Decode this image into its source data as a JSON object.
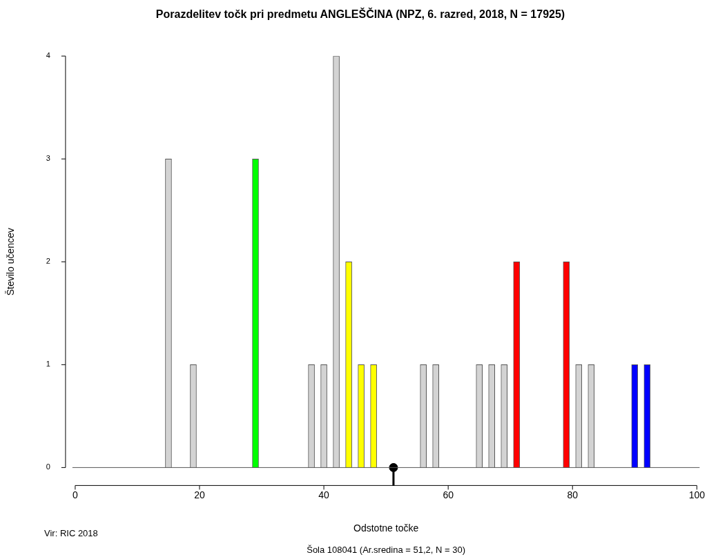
{
  "chart_data": {
    "type": "bar",
    "title": "Porazdelitev točk pri predmetu ANGLEŠČINA (NPZ, 6. razred, 2018, N = 17925)",
    "xlabel": "Odstotne točke",
    "ylabel": "Število učencev",
    "x": [
      15,
      19,
      29,
      38,
      40,
      42,
      44,
      46,
      48,
      56,
      58,
      65,
      67,
      69,
      71,
      79,
      81,
      83,
      90,
      92
    ],
    "series": [
      {
        "values": [
          3,
          1,
          3,
          1,
          1,
          4,
          2,
          1,
          1,
          1,
          1,
          1,
          1,
          1,
          2,
          2,
          1,
          1,
          1,
          1
        ],
        "colors": [
          "#d3d3d3",
          "#d3d3d3",
          "#00ff00",
          "#d3d3d3",
          "#d3d3d3",
          "#d3d3d3",
          "#ffff00",
          "#ffff00",
          "#ffff00",
          "#d3d3d3",
          "#d3d3d3",
          "#d3d3d3",
          "#d3d3d3",
          "#d3d3d3",
          "#ff0000",
          "#ff0000",
          "#d3d3d3",
          "#d3d3d3",
          "#0000ff",
          "#0000ff"
        ]
      },
      {
        "type": "scatter",
        "x": [
          51.2
        ],
        "values": [
          0
        ],
        "color": "#000000"
      }
    ],
    "xlim": [
      0,
      100
    ],
    "xticks": [
      0,
      20,
      40,
      60,
      80,
      100
    ],
    "ylim": [
      0,
      4
    ],
    "yticks": [
      0,
      1,
      2,
      3,
      4
    ],
    "ref_lines": [
      {
        "axis": "y",
        "value": 0,
        "color": "#555555"
      }
    ],
    "annotations": [
      "Vir: RIC 2018",
      "Šola 108041 (Ar.sredina = 51,2, N = 30)"
    ],
    "grid": false,
    "legend": false
  }
}
